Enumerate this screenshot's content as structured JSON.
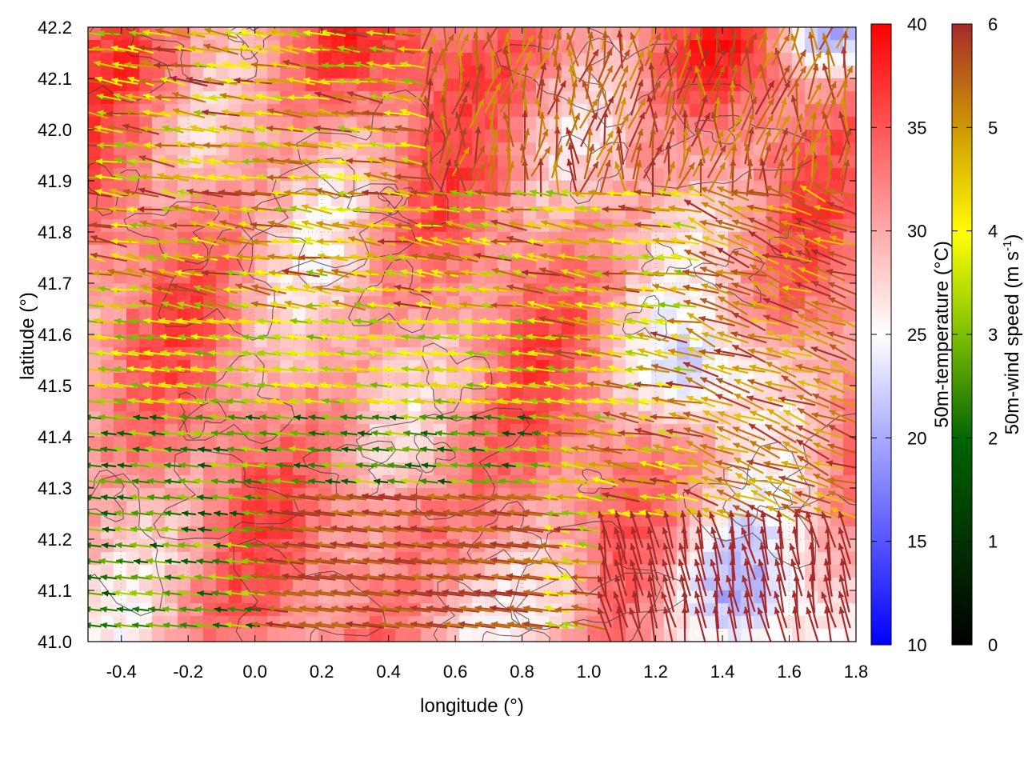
{
  "chart_data": {
    "type": "heatmap",
    "xlabel": "longitude (°)",
    "ylabel": "latitude (°)",
    "xlim": [
      -0.5,
      1.8
    ],
    "ylim": [
      41.0,
      42.2
    ],
    "x_ticks": [
      "-0.4",
      "-0.2",
      "0.0",
      "0.2",
      "0.4",
      "0.6",
      "0.8",
      "1.0",
      "1.2",
      "1.4",
      "1.6",
      "1.8"
    ],
    "y_ticks": [
      "41.0",
      "41.1",
      "41.2",
      "41.3",
      "41.4",
      "41.5",
      "41.6",
      "41.7",
      "41.8",
      "41.9",
      "42.0",
      "42.1",
      "42.2"
    ],
    "grid": true,
    "temperature_colorbar": {
      "label": "50m-temperature (°C)",
      "range": [
        10,
        40
      ],
      "ticks": [
        "10",
        "15",
        "20",
        "25",
        "30",
        "35",
        "40"
      ],
      "colors": [
        "#0000ff",
        "#ffffff",
        "#ff0000"
      ]
    },
    "wind_colorbar": {
      "label_main": "50m-wind speed (m s",
      "label_sup": "-1",
      "label_end": ")",
      "range": [
        0,
        6
      ],
      "ticks": [
        "0",
        "1",
        "2",
        "3",
        "4",
        "5",
        "6"
      ],
      "colors": [
        "#000000",
        "#006400",
        "#7fbf00",
        "#ffff00",
        "#d2a000",
        "#a52a2a"
      ]
    },
    "overlays": [
      "50m-temperature field",
      "wind vectors colored by speed",
      "terrain contours"
    ]
  }
}
